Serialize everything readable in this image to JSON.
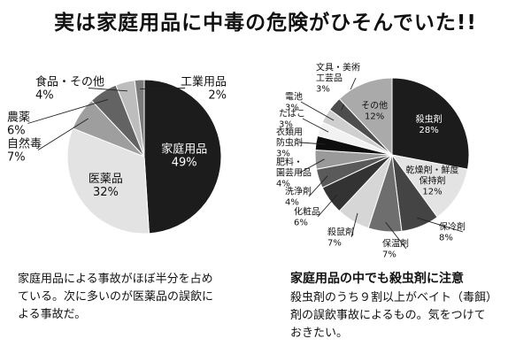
{
  "title": "実は家庭用品に中毒の危険がひそんでいた!!",
  "left_text": [
    "家庭用品による事故がほぼ半分を占め",
    "ている。次に多いのが医薬品の誤飲に",
    "よる事故だ。"
  ],
  "right_heading": "家庭用品の中でも殺虫剤に注意",
  "right_text": [
    "殺虫剤のうち９割以上がベイト（毒餌）",
    "剤の誤飲事故によるもの。気をつけて",
    "おきたい。"
  ],
  "chart_data": [
    {
      "type": "pie",
      "slices": [
        {
          "label": [
            "家庭用品"
          ],
          "value_label": "49%",
          "value": 49,
          "color": "#1c1c1c"
        },
        {
          "label": [
            "医薬品"
          ],
          "value_label": "32%",
          "value": 32,
          "color": "#e3e3e3"
        },
        {
          "label": [
            "自然毒"
          ],
          "value_label": "7%",
          "value": 7,
          "color": "#9e9e9e"
        },
        {
          "label": [
            "農薬"
          ],
          "value_label": "6%",
          "value": 6,
          "color": "#636363"
        },
        {
          "label": [
            "食品・その他"
          ],
          "value_label": "4%",
          "value": 4,
          "color": "#bdbdbd"
        },
        {
          "label": [
            "工業用品"
          ],
          "value_label": "2%",
          "value": 2,
          "color": "#7a7a7a"
        }
      ]
    },
    {
      "type": "pie",
      "slices": [
        {
          "label": [
            "殺虫剤"
          ],
          "value_label": "28%",
          "value": 28,
          "color": "#1c1c1c"
        },
        {
          "label": [
            "乾燥剤・鮮度",
            "保持剤"
          ],
          "value_label": "12%",
          "value": 12,
          "color": "#e3e3e3"
        },
        {
          "label": [
            "保冷剤"
          ],
          "value_label": "8%",
          "value": 8,
          "color": "#444444"
        },
        {
          "label": [
            "保温剤"
          ],
          "value_label": "7%",
          "value": 7,
          "color": "#6e6e6e"
        },
        {
          "label": [
            "殺鼠剤"
          ],
          "value_label": "7%",
          "value": 7,
          "color": "#d6d6d6"
        },
        {
          "label": [
            "化粧品"
          ],
          "value_label": "6%",
          "value": 6,
          "color": "#333333"
        },
        {
          "label": [
            "洗浄剤"
          ],
          "value_label": "4%",
          "value": 4,
          "color": "#5a5a5a"
        },
        {
          "label": [
            "肥料・",
            "園芸用品"
          ],
          "value_label": "4%",
          "value": 4,
          "color": "#9a9a9a"
        },
        {
          "label": [
            "衣類用",
            "防虫剤"
          ],
          "value_label": "3%",
          "value": 3,
          "color": "#0d0d0d"
        },
        {
          "label": [
            "たばこ"
          ],
          "value_label": "3%",
          "value": 3,
          "color": "#f2f2f2"
        },
        {
          "label": [
            "電池"
          ],
          "value_label": "3%",
          "value": 3,
          "color": "#cfcfcf"
        },
        {
          "label": [
            "文具・美術",
            "工芸品"
          ],
          "value_label": "3%",
          "value": 3,
          "color": "#4d4d4d"
        },
        {
          "label": [
            "その他"
          ],
          "value_label": "12%",
          "value": 12,
          "color": "#aaaaaa"
        }
      ]
    }
  ]
}
